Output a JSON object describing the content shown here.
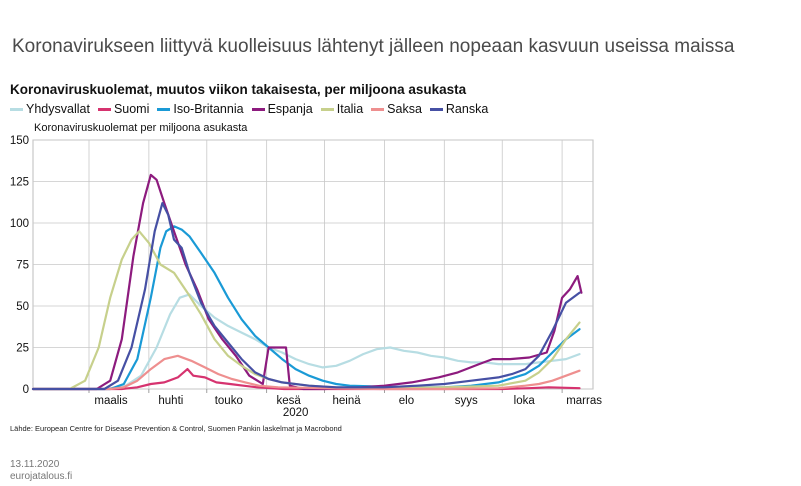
{
  "headline": "Koronavirukseen liittyvä kuolleisuus lähtenyt jälleen nopeaan kasvuun useissa maissa",
  "footer": {
    "source": "Lähde: European Centre for Disease Prevention & Control, Suomen Pankin laskelmat ja Macrobond",
    "date": "13.11.2020",
    "site": "eurojatalous.fi"
  },
  "chart_data": {
    "type": "line",
    "title": "Koronaviruskuolemat, muutos viikon takaisesta, per miljoona asukasta",
    "ylabel": "Koronaviruskuolemat per miljoona asukasta",
    "year_label": "2020",
    "ylim": [
      0,
      150
    ],
    "yticks": [
      0,
      25,
      50,
      75,
      100,
      125,
      150
    ],
    "xlim": [
      "2020-02-01",
      "2020-11-17"
    ],
    "xticks": [
      {
        "date": "2020-03-01",
        "label": "maalis"
      },
      {
        "date": "2020-04-01",
        "label": "huhti"
      },
      {
        "date": "2020-05-01",
        "label": "touko"
      },
      {
        "date": "2020-06-01",
        "label": "kesä"
      },
      {
        "date": "2020-07-01",
        "label": "heinä"
      },
      {
        "date": "2020-08-01",
        "label": "elo"
      },
      {
        "date": "2020-09-01",
        "label": "syys"
      },
      {
        "date": "2020-10-01",
        "label": "loka"
      },
      {
        "date": "2020-11-01",
        "label": "marras"
      }
    ],
    "grid": true,
    "legend_position": "top",
    "series": [
      {
        "name": "Yhdysvallat",
        "color": "#b7dde3",
        "points": [
          [
            "2020-02-01",
            0
          ],
          [
            "2020-03-10",
            0
          ],
          [
            "2020-03-20",
            2
          ],
          [
            "2020-03-28",
            8
          ],
          [
            "2020-04-05",
            25
          ],
          [
            "2020-04-12",
            45
          ],
          [
            "2020-04-17",
            55
          ],
          [
            "2020-04-22",
            57
          ],
          [
            "2020-04-28",
            50
          ],
          [
            "2020-05-05",
            43
          ],
          [
            "2020-05-12",
            38
          ],
          [
            "2020-05-19",
            34
          ],
          [
            "2020-05-26",
            30
          ],
          [
            "2020-06-02",
            25
          ],
          [
            "2020-06-09",
            22
          ],
          [
            "2020-06-16",
            18
          ],
          [
            "2020-06-23",
            15
          ],
          [
            "2020-06-30",
            13
          ],
          [
            "2020-07-07",
            14
          ],
          [
            "2020-07-14",
            17
          ],
          [
            "2020-07-21",
            21
          ],
          [
            "2020-07-28",
            24
          ],
          [
            "2020-08-04",
            25
          ],
          [
            "2020-08-11",
            23
          ],
          [
            "2020-08-18",
            22
          ],
          [
            "2020-08-25",
            20
          ],
          [
            "2020-09-01",
            19
          ],
          [
            "2020-09-08",
            17
          ],
          [
            "2020-09-15",
            16
          ],
          [
            "2020-09-22",
            16
          ],
          [
            "2020-09-29",
            15
          ],
          [
            "2020-10-06",
            15
          ],
          [
            "2020-10-13",
            15
          ],
          [
            "2020-10-20",
            16
          ],
          [
            "2020-10-27",
            17
          ],
          [
            "2020-11-03",
            18
          ],
          [
            "2020-11-10",
            21
          ]
        ]
      },
      {
        "name": "Suomi",
        "color": "#d6336f",
        "points": [
          [
            "2020-02-01",
            0
          ],
          [
            "2020-03-18",
            0
          ],
          [
            "2020-03-26",
            1
          ],
          [
            "2020-04-02",
            3
          ],
          [
            "2020-04-09",
            4
          ],
          [
            "2020-04-16",
            7
          ],
          [
            "2020-04-21",
            12
          ],
          [
            "2020-04-24",
            8
          ],
          [
            "2020-04-30",
            7
          ],
          [
            "2020-05-06",
            4
          ],
          [
            "2020-05-13",
            3
          ],
          [
            "2020-05-20",
            2
          ],
          [
            "2020-05-27",
            1
          ],
          [
            "2020-06-10",
            0
          ],
          [
            "2020-07-01",
            0
          ],
          [
            "2020-08-01",
            0
          ],
          [
            "2020-09-01",
            0
          ],
          [
            "2020-10-01",
            0
          ],
          [
            "2020-10-15",
            0.5
          ],
          [
            "2020-10-25",
            1
          ],
          [
            "2020-11-10",
            0.5
          ]
        ]
      },
      {
        "name": "Iso-Britannia",
        "color": "#1a9ad6",
        "points": [
          [
            "2020-02-01",
            0
          ],
          [
            "2020-03-12",
            0
          ],
          [
            "2020-03-19",
            3
          ],
          [
            "2020-03-26",
            18
          ],
          [
            "2020-04-02",
            55
          ],
          [
            "2020-04-07",
            85
          ],
          [
            "2020-04-10",
            95
          ],
          [
            "2020-04-14",
            98
          ],
          [
            "2020-04-18",
            96
          ],
          [
            "2020-04-22",
            92
          ],
          [
            "2020-04-28",
            82
          ],
          [
            "2020-05-05",
            70
          ],
          [
            "2020-05-12",
            55
          ],
          [
            "2020-05-19",
            42
          ],
          [
            "2020-05-26",
            32
          ],
          [
            "2020-06-02",
            25
          ],
          [
            "2020-06-09",
            18
          ],
          [
            "2020-06-16",
            12
          ],
          [
            "2020-06-23",
            8
          ],
          [
            "2020-06-30",
            5
          ],
          [
            "2020-07-07",
            3
          ],
          [
            "2020-07-14",
            2
          ],
          [
            "2020-07-28",
            1.5
          ],
          [
            "2020-08-15",
            1
          ],
          [
            "2020-09-01",
            1
          ],
          [
            "2020-09-15",
            2
          ],
          [
            "2020-09-29",
            4
          ],
          [
            "2020-10-13",
            9
          ],
          [
            "2020-10-20",
            14
          ],
          [
            "2020-10-27",
            22
          ],
          [
            "2020-11-03",
            30
          ],
          [
            "2020-11-10",
            36
          ]
        ]
      },
      {
        "name": "Espanja",
        "color": "#8d1b7e",
        "points": [
          [
            "2020-02-01",
            0
          ],
          [
            "2020-03-05",
            0
          ],
          [
            "2020-03-12",
            5
          ],
          [
            "2020-03-18",
            30
          ],
          [
            "2020-03-24",
            80
          ],
          [
            "2020-03-29",
            112
          ],
          [
            "2020-04-02",
            129
          ],
          [
            "2020-04-05",
            126
          ],
          [
            "2020-04-09",
            112
          ],
          [
            "2020-04-14",
            95
          ],
          [
            "2020-04-20",
            75
          ],
          [
            "2020-04-26",
            60
          ],
          [
            "2020-05-02",
            42
          ],
          [
            "2020-05-09",
            30
          ],
          [
            "2020-05-16",
            20
          ],
          [
            "2020-05-23",
            8
          ],
          [
            "2020-05-30",
            3
          ],
          [
            "2020-06-02",
            25
          ],
          [
            "2020-06-11",
            25
          ],
          [
            "2020-06-13",
            2
          ],
          [
            "2020-06-20",
            0
          ],
          [
            "2020-07-01",
            0
          ],
          [
            "2020-07-20",
            1
          ],
          [
            "2020-08-01",
            2
          ],
          [
            "2020-08-15",
            4
          ],
          [
            "2020-08-29",
            7
          ],
          [
            "2020-09-08",
            10
          ],
          [
            "2020-09-19",
            15
          ],
          [
            "2020-09-26",
            18
          ],
          [
            "2020-10-05",
            18
          ],
          [
            "2020-10-15",
            19
          ],
          [
            "2020-10-24",
            22
          ],
          [
            "2020-10-28",
            35
          ],
          [
            "2020-11-01",
            55
          ],
          [
            "2020-11-05",
            60
          ],
          [
            "2020-11-09",
            68
          ],
          [
            "2020-11-11",
            58
          ]
        ]
      },
      {
        "name": "Italia",
        "color": "#c7d08c",
        "points": [
          [
            "2020-02-01",
            0
          ],
          [
            "2020-02-20",
            0
          ],
          [
            "2020-02-28",
            5
          ],
          [
            "2020-03-06",
            25
          ],
          [
            "2020-03-12",
            55
          ],
          [
            "2020-03-18",
            78
          ],
          [
            "2020-03-23",
            90
          ],
          [
            "2020-03-27",
            95
          ],
          [
            "2020-04-01",
            88
          ],
          [
            "2020-04-07",
            75
          ],
          [
            "2020-04-14",
            70
          ],
          [
            "2020-04-21",
            58
          ],
          [
            "2020-04-28",
            45
          ],
          [
            "2020-05-05",
            30
          ],
          [
            "2020-05-12",
            20
          ],
          [
            "2020-05-19",
            14
          ],
          [
            "2020-05-26",
            9
          ],
          [
            "2020-06-02",
            6
          ],
          [
            "2020-06-09",
            4
          ],
          [
            "2020-06-23",
            2
          ],
          [
            "2020-07-07",
            1
          ],
          [
            "2020-08-01",
            0.5
          ],
          [
            "2020-09-01",
            1
          ],
          [
            "2020-09-29",
            2
          ],
          [
            "2020-10-13",
            5
          ],
          [
            "2020-10-20",
            10
          ],
          [
            "2020-10-27",
            18
          ],
          [
            "2020-11-03",
            30
          ],
          [
            "2020-11-10",
            40
          ]
        ]
      },
      {
        "name": "Saksa",
        "color": "#ee8f8f",
        "points": [
          [
            "2020-02-01",
            0
          ],
          [
            "2020-03-12",
            0
          ],
          [
            "2020-03-19",
            1
          ],
          [
            "2020-03-26",
            5
          ],
          [
            "2020-04-02",
            12
          ],
          [
            "2020-04-09",
            18
          ],
          [
            "2020-04-16",
            20
          ],
          [
            "2020-04-23",
            17
          ],
          [
            "2020-04-30",
            13
          ],
          [
            "2020-05-07",
            9
          ],
          [
            "2020-05-14",
            6
          ],
          [
            "2020-05-21",
            4
          ],
          [
            "2020-05-28",
            2
          ],
          [
            "2020-06-07",
            1
          ],
          [
            "2020-07-01",
            0.5
          ],
          [
            "2020-08-01",
            0
          ],
          [
            "2020-09-01",
            0
          ],
          [
            "2020-09-29",
            0.5
          ],
          [
            "2020-10-13",
            2
          ],
          [
            "2020-10-20",
            3
          ],
          [
            "2020-10-27",
            5
          ],
          [
            "2020-11-03",
            8
          ],
          [
            "2020-11-10",
            11
          ]
        ]
      },
      {
        "name": "Ranska",
        "color": "#4650a4",
        "points": [
          [
            "2020-02-01",
            0
          ],
          [
            "2020-03-09",
            0
          ],
          [
            "2020-03-16",
            5
          ],
          [
            "2020-03-23",
            25
          ],
          [
            "2020-03-30",
            60
          ],
          [
            "2020-04-04",
            95
          ],
          [
            "2020-04-08",
            112
          ],
          [
            "2020-04-11",
            105
          ],
          [
            "2020-04-14",
            90
          ],
          [
            "2020-04-18",
            85
          ],
          [
            "2020-04-22",
            70
          ],
          [
            "2020-04-28",
            52
          ],
          [
            "2020-05-05",
            38
          ],
          [
            "2020-05-12",
            28
          ],
          [
            "2020-05-19",
            18
          ],
          [
            "2020-05-26",
            10
          ],
          [
            "2020-06-02",
            6
          ],
          [
            "2020-06-09",
            4
          ],
          [
            "2020-06-23",
            2
          ],
          [
            "2020-07-07",
            1
          ],
          [
            "2020-08-01",
            1
          ],
          [
            "2020-08-18",
            2
          ],
          [
            "2020-09-01",
            3
          ],
          [
            "2020-09-15",
            5
          ],
          [
            "2020-09-29",
            7
          ],
          [
            "2020-10-06",
            9
          ],
          [
            "2020-10-13",
            12
          ],
          [
            "2020-10-20",
            20
          ],
          [
            "2020-10-27",
            35
          ],
          [
            "2020-11-03",
            52
          ],
          [
            "2020-11-10",
            58
          ]
        ]
      }
    ]
  }
}
